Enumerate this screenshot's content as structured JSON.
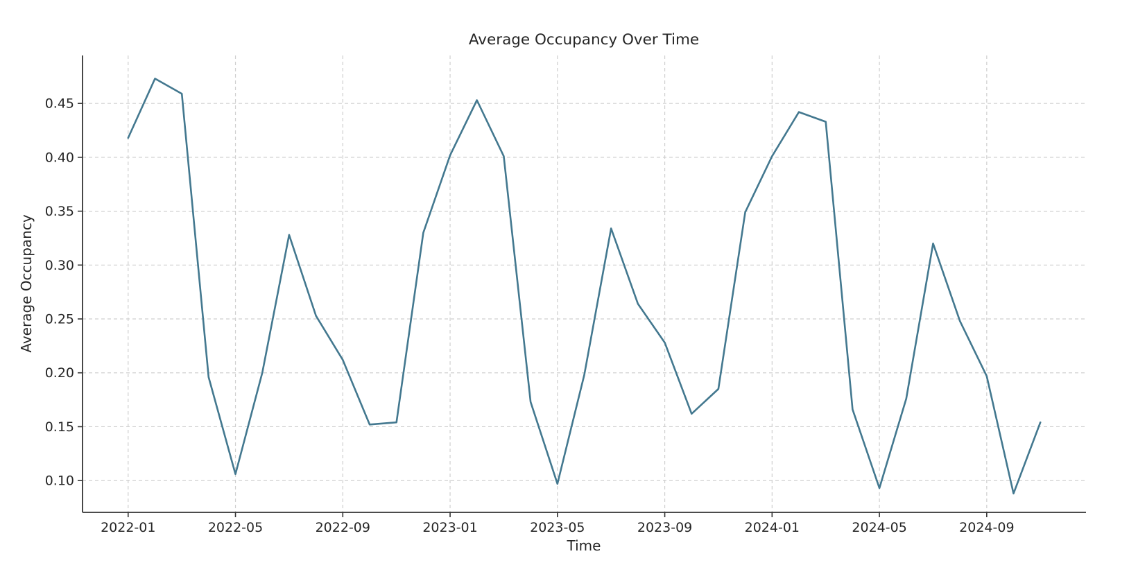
{
  "page": {
    "background_color": "#ffffff"
  },
  "chart_data": {
    "type": "line",
    "title": "Average Occupancy Over Time",
    "xlabel": "Time",
    "ylabel": "Average Occupancy",
    "series": [
      {
        "name": "Average Occupancy",
        "x": [
          "2022-01",
          "2022-02",
          "2022-03",
          "2022-04",
          "2022-05",
          "2022-06",
          "2022-07",
          "2022-08",
          "2022-09",
          "2022-10",
          "2022-11",
          "2022-12",
          "2023-01",
          "2023-02",
          "2023-03",
          "2023-04",
          "2023-05",
          "2023-06",
          "2023-07",
          "2023-08",
          "2023-09",
          "2023-10",
          "2023-11",
          "2023-12",
          "2024-01",
          "2024-02",
          "2024-03",
          "2024-04",
          "2024-05",
          "2024-06",
          "2024-07",
          "2024-08",
          "2024-09",
          "2024-10",
          "2024-11"
        ],
        "values": [
          0.418,
          0.473,
          0.459,
          0.196,
          0.106,
          0.2,
          0.328,
          0.253,
          0.212,
          0.152,
          0.154,
          0.33,
          0.402,
          0.453,
          0.401,
          0.173,
          0.097,
          0.198,
          0.334,
          0.264,
          0.228,
          0.162,
          0.185,
          0.349,
          0.401,
          0.442,
          0.433,
          0.166,
          0.093,
          0.176,
          0.32,
          0.248,
          0.197,
          0.088,
          0.154
        ]
      }
    ],
    "xtick_labels": [
      "2022-01",
      "2022-05",
      "2022-09",
      "2023-01",
      "2023-05",
      "2023-09",
      "2024-01",
      "2024-05",
      "2024-09"
    ],
    "ytick_values": [
      0.1,
      0.15,
      0.2,
      0.25,
      0.3,
      0.35,
      0.4,
      0.45
    ],
    "ytick_labels": [
      "0.10",
      "0.15",
      "0.20",
      "0.25",
      "0.30",
      "0.35",
      "0.40",
      "0.45"
    ],
    "xlim_month_index": [
      -1.7,
      35.7
    ],
    "ylim": [
      0.0705,
      0.4945
    ],
    "grid": true,
    "grid_style": "dashed",
    "legend_position": "none",
    "colors": {
      "line": "#43788f",
      "grid": "#cfcfcf",
      "spine": "#333333",
      "text": "#262626"
    }
  }
}
